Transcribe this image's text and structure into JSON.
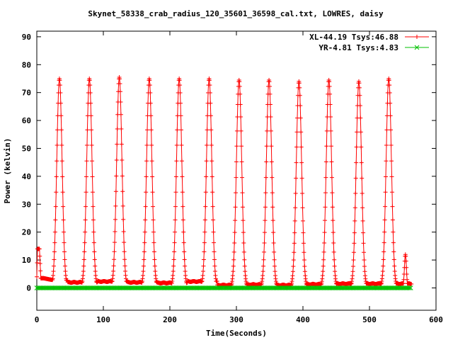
{
  "chart_data": {
    "type": "line",
    "title": "Skynet_58338_crab_radius_120_35601_36598_cal.txt, LOWRES, daisy",
    "xlabel": "Time(Seconds)",
    "ylabel": "Power (kelvin)",
    "xlim": [
      0,
      600
    ],
    "ylim": [
      -8,
      92
    ],
    "xticks": [
      0,
      100,
      200,
      300,
      400,
      500,
      600
    ],
    "yticks": [
      0,
      10,
      20,
      30,
      40,
      50,
      60,
      70,
      80,
      90
    ],
    "grid": false,
    "legend_position": "top-right",
    "series": [
      {
        "name": "XL-44.19 Tsys:46.88",
        "color": "#ff0000",
        "marker": "plus",
        "base_points": [
          [
            0,
            4
          ],
          [
            1,
            14
          ],
          [
            4,
            14
          ],
          [
            6,
            3.5
          ],
          [
            10,
            3.5
          ],
          [
            14,
            3.3
          ],
          [
            20,
            3.0
          ],
          [
            26,
            2.8
          ],
          [
            558,
            1.5
          ],
          [
            563,
            1.5
          ]
        ],
        "spikes": [
          {
            "x": 34,
            "peak": 75,
            "width": 4,
            "after": 2.0
          },
          {
            "x": 79,
            "peak": 75,
            "width": 4,
            "after": 2.3
          },
          {
            "x": 124,
            "peak": 75.5,
            "width": 4,
            "after": 2.0
          },
          {
            "x": 169,
            "peak": 75,
            "width": 4,
            "after": 1.8
          },
          {
            "x": 214,
            "peak": 75,
            "width": 4,
            "after": 2.3
          },
          {
            "x": 259,
            "peak": 75,
            "width": 4,
            "after": 1.0
          },
          {
            "x": 304,
            "peak": 74.5,
            "width": 4,
            "after": 1.2
          },
          {
            "x": 349,
            "peak": 74.5,
            "width": 4,
            "after": 1.0
          },
          {
            "x": 394,
            "peak": 74,
            "width": 4,
            "after": 1.3
          },
          {
            "x": 439,
            "peak": 74.5,
            "width": 4,
            "after": 1.5
          },
          {
            "x": 484,
            "peak": 74,
            "width": 4,
            "after": 1.5
          },
          {
            "x": 529,
            "peak": 75,
            "width": 4,
            "after": 1.5
          },
          {
            "x": 554,
            "peak": 12,
            "width": 1.5,
            "after": 1.5
          }
        ]
      },
      {
        "name": "YR-4.81 Tsys:4.83",
        "color": "#00c000",
        "marker": "cross",
        "points": [
          [
            0,
            0
          ],
          [
            563,
            0
          ]
        ]
      }
    ]
  }
}
